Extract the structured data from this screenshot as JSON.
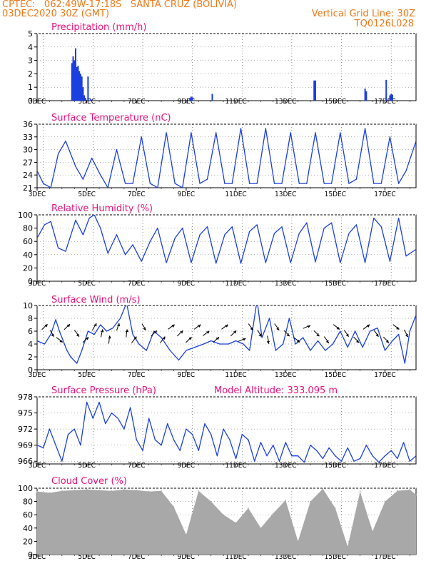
{
  "header": {
    "line1": "CPTEC:   062:49W-17:18S   SANTA CRUZ (BOLIVIA)",
    "line2_left": "03DEC2020 30Z (GMT)",
    "line2_right": "Vertical Grid Line: 30Z",
    "code": "TQ0126L028",
    "altitude": "Model Altitude: 333.095 m"
  },
  "colors": {
    "header": "#f07818",
    "title": "#e8127a",
    "series": "#1a3fe0",
    "cloud": "#a8a8a8",
    "axis": "#000000"
  },
  "x_axis": {
    "labels": [
      "3DEC",
      "5DEC",
      "7DEC",
      "9DEC",
      "11DEC",
      "13DEC",
      "15DEC",
      "17DEC"
    ],
    "label_days": [
      3,
      5,
      7,
      9,
      11,
      13,
      15,
      17
    ],
    "start_day": 3,
    "end_day": 18.25
  },
  "chart_data": [
    {
      "id": "precip",
      "type": "bar",
      "title": "Precipitation (mm/h)",
      "ylim": [
        0,
        5
      ],
      "yticks": [
        0,
        1,
        2,
        3,
        4,
        5
      ],
      "x_unit": "day of December 2020",
      "x": [
        4.4,
        4.45,
        4.5,
        4.55,
        4.6,
        4.65,
        4.7,
        4.75,
        4.8,
        4.85,
        4.9,
        4.95,
        5.05,
        5.15,
        9.15,
        9.2,
        9.25,
        10.05,
        14.15,
        14.2,
        16.2,
        16.25,
        17.05,
        17.2,
        17.25,
        17.3
      ],
      "values": [
        2.8,
        3.3,
        3.0,
        3.9,
        2.5,
        2.6,
        2.2,
        2.0,
        1.8,
        1.0,
        0.4,
        0.2,
        1.8,
        0.1,
        0.2,
        0.3,
        0.25,
        0.5,
        1.5,
        1.5,
        0.9,
        0.7,
        1.55,
        0.4,
        0.5,
        0.45
      ]
    },
    {
      "id": "temp",
      "type": "line",
      "title": "Surface Temperature (nC)",
      "ylim": [
        21,
        36
      ],
      "yticks": [
        21,
        24,
        27,
        30,
        33,
        36
      ],
      "x_unit": "day of December 2020",
      "x": [
        3,
        3.25,
        3.55,
        3.85,
        4.15,
        4.55,
        4.85,
        5.2,
        5.55,
        5.85,
        6.2,
        6.55,
        6.85,
        7.2,
        7.55,
        7.85,
        8.2,
        8.55,
        8.85,
        9.2,
        9.55,
        9.85,
        10.2,
        10.55,
        10.85,
        11.2,
        11.55,
        11.85,
        12.2,
        12.55,
        12.85,
        13.2,
        13.55,
        13.85,
        14.2,
        14.55,
        14.85,
        15.2,
        15.55,
        15.85,
        16.2,
        16.55,
        16.85,
        17.2,
        17.55,
        17.85,
        18.25
      ],
      "values": [
        25,
        22,
        21,
        29,
        32,
        26,
        23,
        28,
        24,
        21,
        30,
        22,
        22,
        33,
        22,
        21,
        34,
        22,
        21,
        34,
        22,
        23,
        34,
        22,
        22,
        35,
        22,
        22,
        35,
        22,
        22,
        34,
        22,
        22,
        34,
        22,
        22,
        34,
        22,
        23,
        35,
        22,
        22,
        33,
        22,
        25,
        32
      ]
    },
    {
      "id": "rh",
      "type": "line",
      "title": "Relative Humidity (%)",
      "ylim": [
        0,
        100
      ],
      "yticks": [
        0,
        20,
        40,
        60,
        80,
        100
      ],
      "x_unit": "day of December 2020",
      "x": [
        3,
        3.3,
        3.55,
        3.85,
        4.15,
        4.55,
        4.85,
        5.1,
        5.3,
        5.55,
        5.85,
        6.2,
        6.55,
        6.85,
        7.2,
        7.55,
        7.85,
        8.2,
        8.55,
        8.85,
        9.2,
        9.55,
        9.85,
        10.2,
        10.55,
        10.85,
        11.2,
        11.55,
        11.85,
        12.2,
        12.55,
        12.85,
        13.2,
        13.55,
        13.85,
        14.2,
        14.55,
        14.85,
        15.2,
        15.55,
        15.85,
        16.2,
        16.55,
        16.85,
        17.2,
        17.55,
        17.85,
        18.25
      ],
      "values": [
        65,
        85,
        90,
        50,
        45,
        92,
        70,
        95,
        100,
        80,
        42,
        70,
        40,
        55,
        30,
        60,
        80,
        28,
        65,
        80,
        28,
        70,
        82,
        27,
        70,
        82,
        27,
        75,
        85,
        28,
        72,
        82,
        28,
        72,
        88,
        29,
        80,
        88,
        28,
        72,
        85,
        28,
        95,
        82,
        30,
        95,
        38,
        48
      ]
    },
    {
      "id": "wind",
      "type": "line",
      "title": "Surface Wind (m/s)",
      "ylim": [
        0,
        10
      ],
      "yticks": [
        0,
        2,
        4,
        6,
        8,
        10
      ],
      "x_unit": "day of December 2020",
      "x": [
        3,
        3.3,
        3.55,
        3.75,
        3.9,
        4.2,
        4.35,
        4.6,
        4.8,
        5.05,
        5.3,
        5.55,
        5.8,
        6.05,
        6.35,
        6.6,
        6.85,
        7.1,
        7.4,
        7.7,
        8.0,
        8.35,
        8.7,
        9.0,
        9.35,
        9.7,
        10.0,
        10.35,
        10.7,
        11.0,
        11.3,
        11.55,
        11.85,
        12.05,
        12.35,
        12.6,
        12.9,
        13.15,
        13.4,
        13.7,
        14.0,
        14.3,
        14.6,
        14.9,
        15.2,
        15.5,
        15.8,
        16.1,
        16.4,
        16.7,
        17.0,
        17.3,
        17.55,
        17.8,
        18.0,
        18.25
      ],
      "values": [
        4.5,
        4,
        5.5,
        7.8,
        6,
        3,
        2,
        1,
        3,
        6,
        5.5,
        7,
        6,
        6.5,
        8,
        10.4,
        5.5,
        4,
        3,
        6,
        5,
        3,
        1.5,
        3,
        3.5,
        4,
        4.5,
        4,
        4,
        4.5,
        4,
        3,
        10.8,
        5,
        8,
        3,
        4,
        8,
        4,
        5,
        3,
        4.5,
        3,
        4,
        6,
        3.5,
        6,
        3.5,
        6,
        6.5,
        3,
        4.5,
        5.5,
        1,
        6,
        8.5
      ],
      "arrows": {
        "x": [
          3.3,
          3.6,
          3.9,
          4.2,
          4.6,
          4.95,
          5.3,
          5.6,
          5.9,
          6.25,
          6.6,
          6.9,
          7.3,
          7.7,
          8.05,
          8.4,
          8.75,
          9.1,
          9.45,
          9.8,
          10.2,
          10.55,
          10.9,
          11.25,
          11.6,
          11.95,
          12.3,
          12.65,
          13.05,
          13.45,
          13.85,
          14.25,
          14.65,
          15.05,
          15.45,
          15.85,
          16.25,
          16.65,
          17.05,
          17.45,
          17.85
        ],
        "u": [
          0.7,
          0.5,
          0.8,
          0.7,
          0.6,
          0.7,
          0.5,
          0.2,
          0.1,
          0.3,
          0.1,
          0.6,
          0.5,
          0.7,
          0.6,
          0.8,
          0.7,
          0.7,
          0.8,
          0.8,
          0.7,
          0.8,
          0.7,
          0.9,
          0.6,
          0.5,
          0.2,
          0.6,
          0.7,
          0.8,
          0.9,
          0.7,
          0.6,
          0.8,
          0.6,
          0.7,
          0.8,
          0.6,
          0.7,
          0.8,
          0.5
        ],
        "v": [
          0.7,
          -0.8,
          -0.6,
          0.7,
          -0.8,
          0.7,
          0.9,
          1,
          1,
          0.9,
          1,
          0.8,
          -0.8,
          0.7,
          0.8,
          0.6,
          0.7,
          0.7,
          0.6,
          0.6,
          0.7,
          0.6,
          0.7,
          0.4,
          -0.8,
          -0.8,
          -1,
          -0.8,
          -0.7,
          -0.6,
          0.4,
          -0.7,
          -0.8,
          -0.6,
          -0.8,
          -0.7,
          0.6,
          -0.8,
          -0.7,
          -0.6,
          -0.9
        ]
      }
    },
    {
      "id": "pres",
      "type": "line",
      "title": "Surface Pressure (hPa)",
      "ylim": [
        965.5,
        978
      ],
      "yticks": [
        966,
        969,
        972,
        975,
        978
      ],
      "x_unit": "day of December 2020",
      "x": [
        3,
        3.25,
        3.5,
        3.75,
        4.0,
        4.25,
        4.5,
        4.75,
        5.0,
        5.25,
        5.5,
        5.75,
        6.0,
        6.25,
        6.5,
        6.75,
        7.0,
        7.25,
        7.5,
        7.75,
        8.0,
        8.25,
        8.5,
        8.75,
        9.0,
        9.25,
        9.5,
        9.75,
        10.0,
        10.25,
        10.5,
        10.75,
        11.0,
        11.25,
        11.5,
        11.75,
        12.0,
        12.25,
        12.5,
        12.75,
        13.0,
        13.25,
        13.5,
        13.75,
        14.0,
        14.25,
        14.5,
        14.75,
        15.0,
        15.25,
        15.5,
        15.75,
        16.0,
        16.25,
        16.5,
        16.75,
        17.0,
        17.25,
        17.5,
        17.75,
        18.0,
        18.25
      ],
      "values": [
        969,
        968.5,
        972,
        969,
        966,
        971,
        972,
        969,
        977,
        974,
        977,
        973,
        975,
        974,
        972,
        976,
        970,
        968,
        974,
        970,
        969,
        973,
        970,
        968,
        972,
        971,
        968,
        973,
        971,
        967,
        972,
        970,
        966.5,
        971,
        970,
        966,
        969.5,
        967,
        969,
        966,
        969.5,
        967,
        967,
        965.8,
        969,
        968,
        966.5,
        968.5,
        967,
        966,
        968.5,
        966,
        966.5,
        969,
        967,
        965.8,
        967,
        968,
        966.5,
        969.5,
        966,
        967
      ]
    },
    {
      "id": "cloud",
      "type": "area",
      "title": "Cloud Cover (%)",
      "ylim": [
        0,
        100
      ],
      "yticks": [
        0,
        20,
        40,
        60,
        80,
        100
      ],
      "x_unit": "day of December 2020",
      "x": [
        3,
        3.5,
        4.0,
        4.5,
        5.0,
        5.5,
        6.0,
        6.5,
        7.0,
        7.5,
        8.0,
        8.5,
        9.0,
        9.5,
        10.0,
        10.5,
        11.0,
        11.5,
        12.0,
        12.5,
        13.0,
        13.5,
        14.0,
        14.5,
        15.0,
        15.5,
        16.0,
        16.5,
        17.0,
        17.5,
        18.0,
        18.25
      ],
      "values": [
        95,
        93,
        96,
        97,
        98,
        97,
        96,
        98,
        97,
        95,
        96,
        72,
        30,
        96,
        80,
        60,
        48,
        70,
        40,
        62,
        82,
        20,
        80,
        99,
        70,
        12,
        95,
        35,
        80,
        96,
        98,
        90
      ]
    }
  ]
}
